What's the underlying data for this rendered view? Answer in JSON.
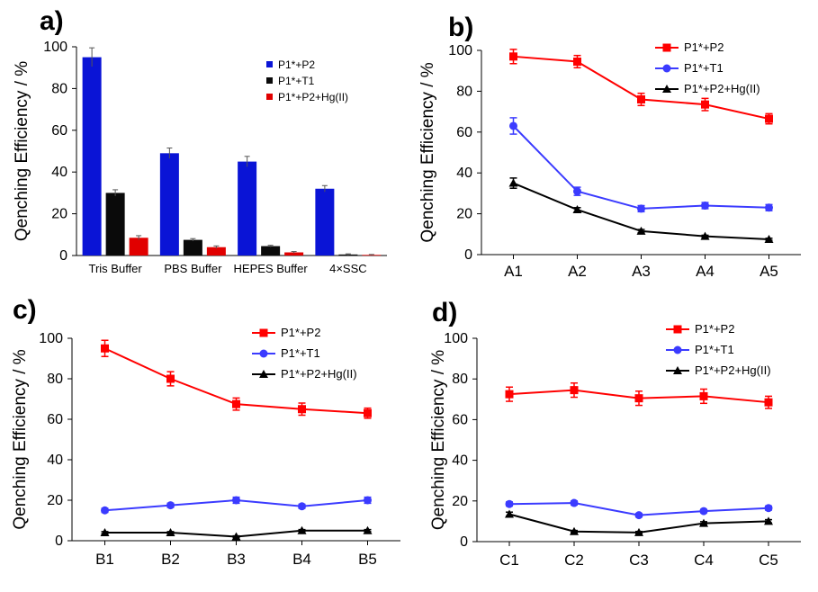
{
  "panels": [
    {
      "label": "a)"
    },
    {
      "label": "b)"
    },
    {
      "label": "c)"
    },
    {
      "label": "d)"
    }
  ],
  "colors": {
    "P1*+P2": "#ff0000",
    "P1*+T1": "#3b3bff",
    "P1*+P2+Hg(II)": "#000000",
    "bar_P1*+P2": "#0a14d6",
    "bar_P1*+T1": "#0a0a0a",
    "bar_P1*+P2+Hg(II)": "#e10000"
  },
  "chart_data": [
    {
      "type": "bar",
      "title": "",
      "xlabel": "",
      "ylabel": "Qenching Efficiency / %",
      "ylim": [
        0,
        100
      ],
      "yticks": [
        0,
        20,
        40,
        60,
        80,
        100
      ],
      "categories": [
        "Tris Buffer",
        "PBS Buffer",
        "HEPES Buffer",
        "4×SSC"
      ],
      "series": [
        {
          "name": "P1*+P2",
          "values": [
            95,
            49,
            45,
            32
          ],
          "errors": [
            4.5,
            2.5,
            2.5,
            1.5
          ]
        },
        {
          "name": "P1*+T1",
          "values": [
            30,
            7.5,
            4.5,
            0.5
          ],
          "errors": [
            1.5,
            0.6,
            0.4,
            0.3
          ]
        },
        {
          "name": "P1*+P2+Hg(II)",
          "values": [
            8.5,
            4,
            1.5,
            0.3
          ],
          "errors": [
            1,
            0.6,
            0.4,
            0.2
          ]
        }
      ],
      "legend": [
        "P1*+P2",
        "P1*+T1",
        "P1*+P2+Hg(II)"
      ],
      "legend_position": "top-right"
    },
    {
      "type": "line",
      "title": "",
      "xlabel": "",
      "ylabel": "Qenching Efficiency / %",
      "ylim": [
        0,
        100
      ],
      "yticks": [
        0,
        20,
        40,
        60,
        80,
        100
      ],
      "categories": [
        "A1",
        "A2",
        "A3",
        "A4",
        "A5"
      ],
      "series": [
        {
          "name": "P1*+P2",
          "marker": "square",
          "values": [
            97,
            94.5,
            76,
            73.5,
            66.5
          ],
          "errors": [
            3.5,
            3,
            3,
            3,
            2.5
          ]
        },
        {
          "name": "P1*+T1",
          "marker": "circle",
          "values": [
            63,
            31,
            22.5,
            24,
            23
          ],
          "errors": [
            4,
            2,
            1.5,
            1.5,
            1.5
          ]
        },
        {
          "name": "P1*+P2+Hg(II)",
          "marker": "triangle",
          "values": [
            35,
            22,
            11.5,
            9,
            7.5
          ],
          "errors": [
            2.5,
            1,
            0.8,
            0.5,
            0.5
          ]
        }
      ],
      "legend": [
        "P1*+P2",
        "P1*+T1",
        "P1*+P2+Hg(II)"
      ],
      "legend_position": "top-right"
    },
    {
      "type": "line",
      "title": "",
      "xlabel": "",
      "ylabel": "Qenching Efficiency / %",
      "ylim": [
        0,
        100
      ],
      "yticks": [
        0,
        20,
        40,
        60,
        80,
        100
      ],
      "categories": [
        "B1",
        "B2",
        "B3",
        "B4",
        "B5"
      ],
      "series": [
        {
          "name": "P1*+P2",
          "marker": "square",
          "values": [
            95,
            80,
            67.5,
            65,
            63
          ],
          "errors": [
            4,
            3.5,
            3,
            3,
            2.5
          ]
        },
        {
          "name": "P1*+T1",
          "marker": "circle",
          "values": [
            15,
            17.5,
            20,
            17,
            20
          ],
          "errors": [
            1,
            1,
            1.5,
            1,
            1.5
          ]
        },
        {
          "name": "P1*+P2+Hg(II)",
          "marker": "triangle",
          "values": [
            4,
            4,
            2,
            5,
            5
          ],
          "errors": [
            0.5,
            0.5,
            0.4,
            0.5,
            0.5
          ]
        }
      ],
      "legend": [
        "P1*+P2",
        "P1*+T1",
        "P1*+P2+Hg(II)"
      ],
      "legend_position": "top-right"
    },
    {
      "type": "line",
      "title": "",
      "xlabel": "",
      "ylabel": "Qenching Efficiency / %",
      "ylim": [
        0,
        100
      ],
      "yticks": [
        0,
        20,
        40,
        60,
        80,
        100
      ],
      "categories": [
        "C1",
        "C2",
        "C3",
        "C4",
        "C5"
      ],
      "series": [
        {
          "name": "P1*+P2",
          "marker": "square",
          "values": [
            72.5,
            74.5,
            70.5,
            71.5,
            68.5
          ],
          "errors": [
            3.5,
            3.5,
            3.5,
            3.5,
            3
          ]
        },
        {
          "name": "P1*+T1",
          "marker": "circle",
          "values": [
            18.5,
            19,
            13,
            15,
            16.5
          ],
          "errors": [
            1,
            1,
            0.8,
            0.8,
            1
          ]
        },
        {
          "name": "P1*+P2+Hg(II)",
          "marker": "triangle",
          "values": [
            13.5,
            5,
            4.5,
            9,
            10
          ],
          "errors": [
            1,
            0.5,
            0.5,
            0.8,
            0.8
          ]
        }
      ],
      "legend": [
        "P1*+P2",
        "P1*+T1",
        "P1*+P2+Hg(II)"
      ],
      "legend_position": "top-right"
    }
  ]
}
